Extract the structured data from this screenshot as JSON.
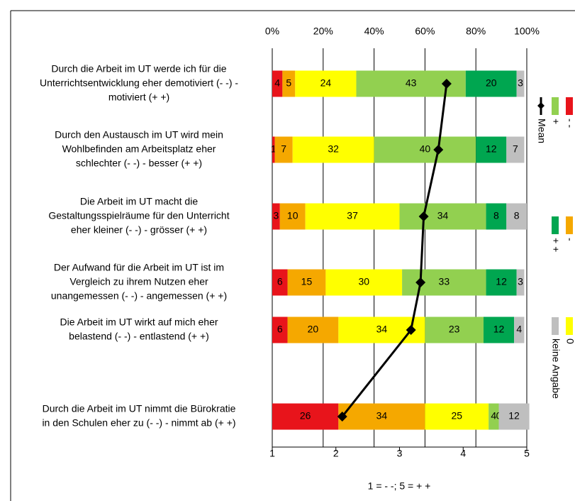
{
  "chart_data": {
    "type": "stacked-bar-horizontal",
    "categories": [
      [
        "Durch die Arbeit im UT werde ich für die",
        "Unterrichtsentwicklung eher demotiviert (- -) -",
        "motiviert (+ +)"
      ],
      [
        "Durch den Austausch im UT wird mein",
        "Wohlbefinden am Arbeitsplatz eher",
        "schlechter (- -) - besser (+ +)"
      ],
      [
        "Die Arbeit im UT macht die",
        "Gestaltungsspielräume für den Unterricht",
        "eher kleiner (- -) - grösser (+ +)"
      ],
      [
        "Der Aufwand für die Arbeit im UT ist im",
        "Vergleich zu ihrem Nutzen eher",
        "unangemessen (- -) - angemessen (+ +)"
      ],
      [
        "Die Arbeit im UT wirkt auf mich eher",
        "belastend (- -) - entlastend (+ +)"
      ],
      [
        "Durch die Arbeit im UT nimmt die Bürokratie",
        "in den Schulen eher zu (- -) - nimmt ab (+ +)"
      ]
    ],
    "series": [
      {
        "name": "- -",
        "color": "#e8141b",
        "values": [
          4,
          1,
          3,
          6,
          6,
          26
        ]
      },
      {
        "name": "-",
        "color": "#f5a800",
        "values": [
          5,
          7,
          10,
          15,
          20,
          34
        ]
      },
      {
        "name": "0",
        "color": "#ffff00",
        "values": [
          24,
          32,
          37,
          30,
          34,
          25
        ]
      },
      {
        "name": "+",
        "color": "#92d050",
        "values": [
          43,
          40,
          34,
          33,
          23,
          4
        ]
      },
      {
        "name": "+ +",
        "color": "#00a650",
        "values": [
          20,
          12,
          8,
          12,
          12,
          0
        ]
      },
      {
        "name": "keine Angabe",
        "color": "#bfbfbf",
        "values": [
          3,
          7,
          8,
          3,
          4,
          12
        ]
      },
      {
        "name": "Mean",
        "color": "#000000",
        "axis": "x2",
        "values": [
          3.74,
          3.61,
          3.38,
          3.33,
          3.18,
          2.1
        ]
      }
    ],
    "xlim": [
      0,
      100
    ],
    "xticks": [
      {
        "value": 0,
        "label": "0%"
      },
      {
        "value": 20,
        "label": "20%"
      },
      {
        "value": 40,
        "label": "40%"
      },
      {
        "value": 60,
        "label": "60%"
      },
      {
        "value": 80,
        "label": "80%"
      },
      {
        "value": 100,
        "label": "100%"
      }
    ],
    "x2lim": [
      1,
      5
    ],
    "x2ticks": [
      1,
      2,
      3,
      4,
      5
    ],
    "x2label": "1 = - -; 5 = + +",
    "grid": true
  }
}
